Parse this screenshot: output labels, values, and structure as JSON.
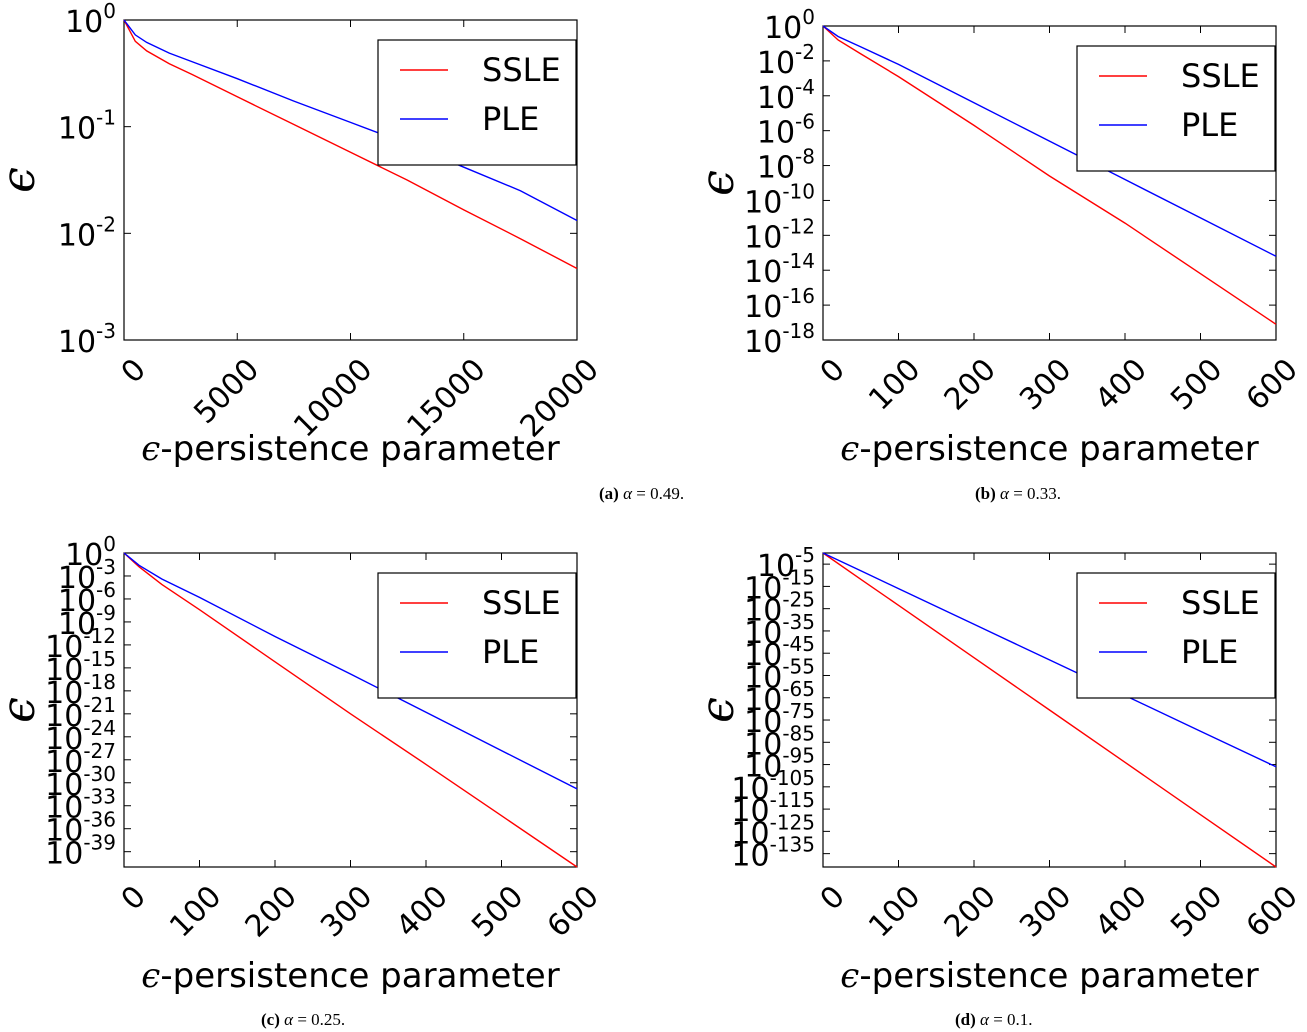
{
  "figure": {
    "x_label_prefix": "ϵ",
    "x_label_rest": "-persistence parameter",
    "y_label": "ϵ",
    "colors": {
      "SSLE": "#ff0000",
      "PLE": "#0000ff"
    },
    "legend_location": "top-right"
  },
  "captions": [
    {
      "sub": "(a)",
      "alpha_sym": "α",
      "rest": " = 0.49."
    },
    {
      "sub": "(b)",
      "alpha_sym": "α",
      "rest": " = 0.33."
    },
    {
      "sub": "(c)",
      "alpha_sym": "α",
      "rest": " = 0.25."
    },
    {
      "sub": "(d)",
      "alpha_sym": "α",
      "rest": " = 0.1."
    }
  ],
  "chart_data": [
    {
      "type": "line",
      "xlabel": "ϵ-persistence parameter",
      "ylabel": "ϵ",
      "y_scale": "log",
      "xlim": [
        0,
        20000
      ],
      "ylim_exp": [
        -3,
        0
      ],
      "x_ticks": [
        "0",
        "5000",
        "10000",
        "15000",
        "20000"
      ],
      "y_ticks": [
        {
          "exp": 0,
          "label": "0"
        },
        {
          "exp": -1,
          "label": "-1"
        },
        {
          "exp": -2,
          "label": "-2"
        },
        {
          "exp": -3,
          "label": "-3"
        }
      ],
      "legend": [
        "SSLE",
        "PLE"
      ],
      "series": [
        {
          "name": "SSLE",
          "x": [
            0,
            500,
            1000,
            2000,
            3000,
            5000,
            7500,
            10000,
            12500,
            15000,
            17500,
            20000
          ],
          "log10_y": [
            0,
            -0.2,
            -0.29,
            -0.41,
            -0.51,
            -0.72,
            -0.98,
            -1.24,
            -1.5,
            -1.78,
            -2.05,
            -2.33
          ]
        },
        {
          "name": "PLE",
          "x": [
            0,
            500,
            1000,
            2000,
            3000,
            5000,
            7500,
            10000,
            12500,
            15000,
            17500,
            20000
          ],
          "log10_y": [
            0,
            -0.14,
            -0.21,
            -0.31,
            -0.39,
            -0.55,
            -0.76,
            -0.96,
            -1.16,
            -1.38,
            -1.6,
            -1.88
          ]
        }
      ]
    },
    {
      "type": "line",
      "xlabel": "ϵ-persistence parameter",
      "ylabel": "ϵ",
      "y_scale": "log",
      "xlim": [
        0,
        600
      ],
      "ylim_exp": [
        -18,
        0
      ],
      "x_ticks": [
        "0",
        "100",
        "200",
        "300",
        "400",
        "500",
        "600"
      ],
      "y_ticks": [
        {
          "exp": 0,
          "label": "0"
        },
        {
          "exp": -2,
          "label": "-2"
        },
        {
          "exp": -4,
          "label": "-4"
        },
        {
          "exp": -6,
          "label": "-6"
        },
        {
          "exp": -8,
          "label": "-8"
        },
        {
          "exp": -10,
          "label": "-10"
        },
        {
          "exp": -12,
          "label": "-12"
        },
        {
          "exp": -14,
          "label": "-14"
        },
        {
          "exp": -16,
          "label": "-16"
        },
        {
          "exp": -18,
          "label": "-18"
        }
      ],
      "legend": [
        "SSLE",
        "PLE"
      ],
      "series": [
        {
          "name": "SSLE",
          "x": [
            0,
            20,
            50,
            100,
            200,
            300,
            400,
            500,
            600
          ],
          "log10_y": [
            0,
            -0.8,
            -1.6,
            -2.9,
            -5.7,
            -8.6,
            -11.3,
            -14.2,
            -17.1
          ]
        },
        {
          "name": "PLE",
          "x": [
            0,
            20,
            50,
            100,
            200,
            300,
            400,
            500,
            600
          ],
          "log10_y": [
            0,
            -0.6,
            -1.2,
            -2.2,
            -4.4,
            -6.6,
            -8.8,
            -11,
            -13.2
          ]
        }
      ]
    },
    {
      "type": "line",
      "xlabel": "ϵ-persistence parameter",
      "ylabel": "ϵ",
      "y_scale": "log",
      "xlim": [
        0,
        600
      ],
      "ylim_exp": [
        -41,
        0
      ],
      "x_ticks": [
        "0",
        "100",
        "200",
        "300",
        "400",
        "500",
        "600"
      ],
      "y_ticks": [
        {
          "exp": 0,
          "label": "0"
        },
        {
          "exp": -3,
          "label": "-3"
        },
        {
          "exp": -6,
          "label": "-6"
        },
        {
          "exp": -9,
          "label": "-9"
        },
        {
          "exp": -12,
          "label": "-12"
        },
        {
          "exp": -15,
          "label": "-15"
        },
        {
          "exp": -18,
          "label": "-18"
        },
        {
          "exp": -21,
          "label": "-21"
        },
        {
          "exp": -24,
          "label": "-24"
        },
        {
          "exp": -27,
          "label": "-27"
        },
        {
          "exp": -30,
          "label": "-30"
        },
        {
          "exp": -33,
          "label": "-33"
        },
        {
          "exp": -36,
          "label": "-36"
        },
        {
          "exp": -39,
          "label": "-39"
        }
      ],
      "legend": [
        "SSLE",
        "PLE"
      ],
      "series": [
        {
          "name": "SSLE",
          "x": [
            0,
            20,
            50,
            100,
            200,
            300,
            400,
            500,
            600
          ],
          "log10_y": [
            0,
            -1.8,
            -4.1,
            -7.4,
            -14.2,
            -21,
            -27.6,
            -34.3,
            -41
          ]
        },
        {
          "name": "PLE",
          "x": [
            0,
            20,
            50,
            100,
            200,
            300,
            400,
            500,
            600
          ],
          "log10_y": [
            0,
            -1.6,
            -3.4,
            -5.8,
            -10.9,
            -15.8,
            -20.8,
            -25.8,
            -30.8
          ]
        }
      ]
    },
    {
      "type": "line",
      "xlabel": "ϵ-persistence parameter",
      "ylabel": "ϵ",
      "y_scale": "log",
      "xlim": [
        0,
        600
      ],
      "ylim_exp": [
        -141,
        0
      ],
      "x_ticks": [
        "0",
        "100",
        "200",
        "300",
        "400",
        "500",
        "600"
      ],
      "y_ticks": [
        {
          "exp": -5,
          "label": "-5"
        },
        {
          "exp": -15,
          "label": "-15"
        },
        {
          "exp": -25,
          "label": "-25"
        },
        {
          "exp": -35,
          "label": "-35"
        },
        {
          "exp": -45,
          "label": "-45"
        },
        {
          "exp": -55,
          "label": "-55"
        },
        {
          "exp": -65,
          "label": "-65"
        },
        {
          "exp": -75,
          "label": "-75"
        },
        {
          "exp": -85,
          "label": "-85"
        },
        {
          "exp": -95,
          "label": "-95"
        },
        {
          "exp": -105,
          "label": "-105"
        },
        {
          "exp": -115,
          "label": "-115"
        },
        {
          "exp": -125,
          "label": "-125"
        },
        {
          "exp": -135,
          "label": "-135"
        }
      ],
      "legend": [
        "SSLE",
        "PLE"
      ],
      "series": [
        {
          "name": "SSLE",
          "x": [
            0,
            50,
            100,
            200,
            300,
            400,
            500,
            600
          ],
          "log10_y": [
            0,
            -11.8,
            -23.5,
            -47,
            -70.5,
            -94,
            -117.5,
            -141
          ]
        },
        {
          "name": "PLE",
          "x": [
            0,
            50,
            100,
            200,
            300,
            400,
            500,
            600
          ],
          "log10_y": [
            0,
            -8,
            -16,
            -32,
            -48,
            -64,
            -80,
            -96
          ]
        }
      ]
    }
  ]
}
